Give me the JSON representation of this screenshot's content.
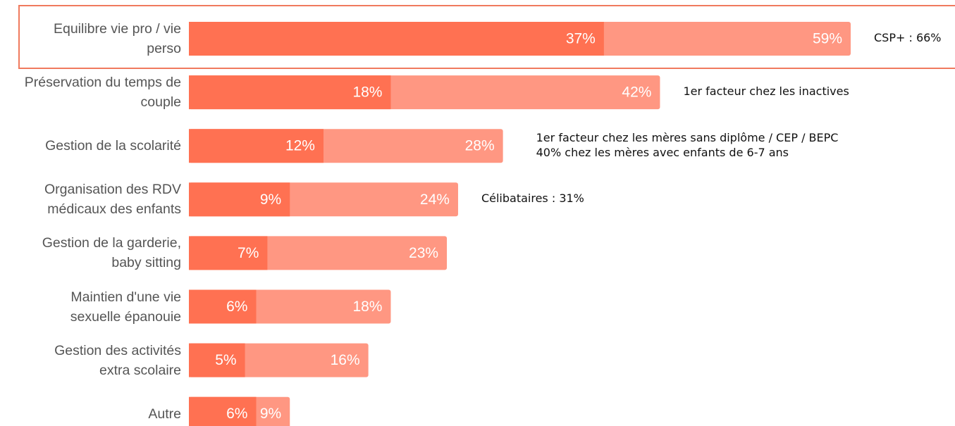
{
  "chart_data": {
    "type": "bar",
    "orientation": "horizontal",
    "categories": [
      "Equilibre vie pro / vie\nperso",
      "Préservation du temps de\ncouple",
      "Gestion de la scolarité",
      "Organisation des RDV\nmédicaux des enfants",
      "Gestion de la garderie,\nbaby sitting",
      "Maintien d'une vie\nsexuelle épanouie",
      "Gestion des activités\nextra scolaire",
      "Autre"
    ],
    "series": [
      {
        "color": "#ff9782",
        "values": [
          59,
          42,
          28,
          24,
          23,
          18,
          16,
          9
        ],
        "value_labels": [
          "59%",
          "42%",
          "28%",
          "24%",
          "23%",
          "18%",
          "16%",
          "9%"
        ]
      },
      {
        "color": "#ff7152",
        "values": [
          37,
          18,
          12,
          9,
          7,
          6,
          5,
          6
        ],
        "value_labels": [
          "37%",
          "18%",
          "12%",
          "9%",
          "7%",
          "6%",
          "5%",
          "6%"
        ]
      }
    ],
    "annotations": [
      [
        "CSP+ : 66%"
      ],
      [
        "1er facteur chez les inactives"
      ],
      [
        "1er facteur chez les mères sans diplôme / CEP / BEPC",
        "40% chez les mères avec enfants de 6-7 ans"
      ],
      [
        "Célibataires : 31%"
      ],
      null,
      null,
      null,
      null
    ]
  }
}
